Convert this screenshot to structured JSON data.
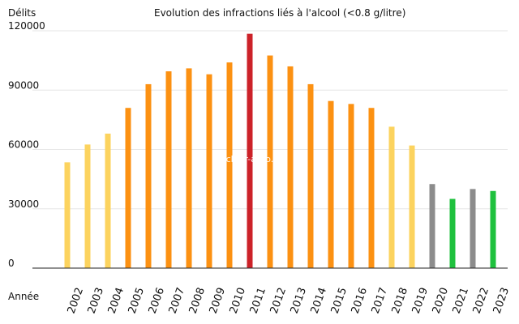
{
  "chart_data": {
    "type": "bar",
    "title": "Evolution des infractions liés à l'alcool (<0.8 g/litre)",
    "ylabel": "Délits",
    "xlabel": "Année",
    "watermark": "Fichier-auto.fr",
    "ylim": [
      0,
      120000
    ],
    "yticks": [
      0,
      30000,
      60000,
      90000,
      120000
    ],
    "categories": [
      "2002",
      "2003",
      "2004",
      "2005",
      "2006",
      "2007",
      "2008",
      "2009",
      "2010",
      "2011",
      "2012",
      "2013",
      "2014",
      "2015",
      "2016",
      "2017",
      "2018",
      "2019",
      "2020",
      "2021",
      "2022",
      "2023"
    ],
    "values": [
      53500,
      62500,
      68000,
      81000,
      93000,
      99500,
      101000,
      98000,
      104000,
      118500,
      107500,
      102000,
      93000,
      84500,
      83000,
      81000,
      71500,
      62000,
      42500,
      35000,
      40000,
      39000
    ],
    "colors": [
      "#fcd35e",
      "#fcd35e",
      "#fcd35e",
      "#fc9112",
      "#fc9112",
      "#fc9112",
      "#fc9112",
      "#fc9112",
      "#fc9112",
      "#cc2229",
      "#fc9112",
      "#fc9112",
      "#fc9112",
      "#fc9112",
      "#fc9112",
      "#fc9112",
      "#fcd35e",
      "#fcd35e",
      "#8c8c8c",
      "#1fc13e",
      "#8c8c8c",
      "#1fc13e"
    ],
    "grid": true
  }
}
